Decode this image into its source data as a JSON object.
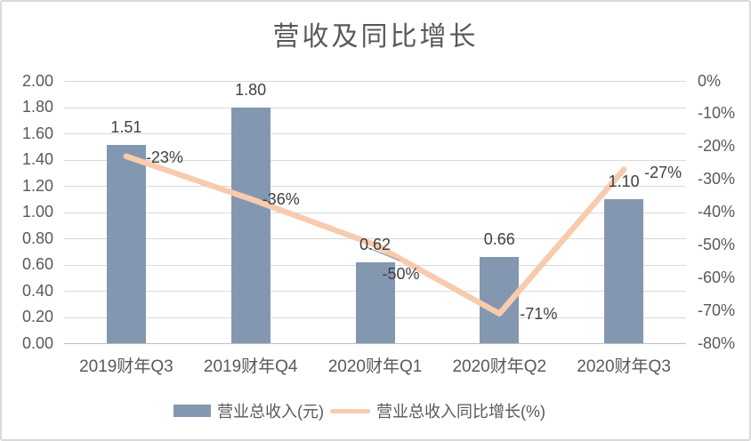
{
  "chart_data": {
    "type": "bar",
    "combo": "bar+line",
    "title": "营收及同比增长",
    "categories": [
      "2019财年Q3",
      "2019财年Q4",
      "2020财年Q1",
      "2020财年Q2",
      "2020财年Q3"
    ],
    "series": [
      {
        "name": "营业总收入(元)",
        "type": "bar",
        "axis": "left",
        "values": [
          1.51,
          1.8,
          0.62,
          0.66,
          1.1
        ],
        "data_labels": [
          "1.51",
          "1.80",
          "0.62",
          "0.66",
          "1.10"
        ],
        "color": "#8497B0"
      },
      {
        "name": "营业总收入同比增长(%)",
        "type": "line",
        "axis": "right",
        "values": [
          -23,
          -36,
          -50,
          -71,
          -27
        ],
        "data_labels": [
          "-23%",
          "-36%",
          "-50%",
          "-71%",
          "-27%"
        ],
        "color": "#F8CBAD"
      }
    ],
    "left_axis": {
      "range": [
        0,
        2
      ],
      "tick_labels": [
        "2.00",
        "1.80",
        "1.60",
        "1.40",
        "1.20",
        "1.00",
        "0.80",
        "0.60",
        "0.40",
        "0.20",
        "0.00"
      ]
    },
    "right_axis": {
      "range": [
        0,
        -80
      ],
      "tick_labels": [
        "0%",
        "-10%",
        "-20%",
        "-30%",
        "-40%",
        "-50%",
        "-60%",
        "-70%",
        "-80%"
      ]
    },
    "grid": "horizontal-major",
    "legend_position": "bottom"
  },
  "colors": {
    "bar": "#8497B0",
    "line": "#F8CBAD",
    "axis_text": "#595959",
    "data_label_text": "#404040",
    "gridline": "#D9D9D9",
    "axis_line": "#BFBFBF",
    "title_text": "#595959",
    "frame_border": "#D9D9D9"
  }
}
